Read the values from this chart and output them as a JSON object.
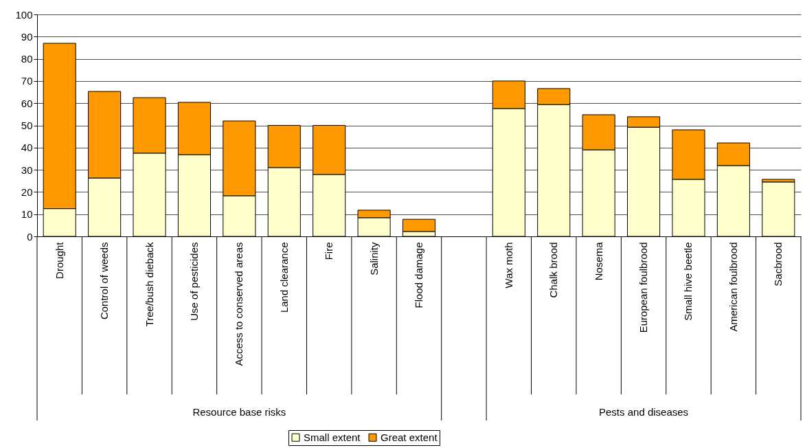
{
  "chart_data": {
    "type": "bar",
    "stacked": true,
    "categories": [
      "Drought",
      "Control of weeds",
      "Tree/bush dieback",
      "Use of pesticides",
      "Access to conserved areas",
      "Land clearance",
      "Fire",
      "Salinity",
      "Flood damage",
      null,
      "Wax moth",
      "Chalk brood",
      "Nosema",
      "European foulbrood",
      "Small hive beetle",
      "American foulbrood",
      "Sacbrood"
    ],
    "series": [
      {
        "name": "Small extent",
        "color": "#ffffcc",
        "values": [
          12.5,
          26.3,
          37.5,
          36.8,
          18.3,
          31,
          27.9,
          8.4,
          2.2,
          null,
          57.6,
          59.4,
          39,
          49.2,
          25.7,
          31.9,
          24.5
        ]
      },
      {
        "name": "Great extent",
        "color": "#ff9900",
        "values": [
          74.5,
          39,
          25,
          23.6,
          33.7,
          19,
          22.1,
          3.4,
          5.5,
          null,
          12.4,
          7.2,
          15.8,
          4.7,
          22.3,
          10.2,
          1.2
        ]
      }
    ],
    "ylim": [
      0,
      100
    ],
    "yticks": [
      0,
      10,
      20,
      30,
      40,
      50,
      60,
      70,
      80,
      90,
      100
    ],
    "grid": "y",
    "legend": "bottom",
    "annotations": [
      "Resource base risks",
      "Pests and diseases"
    ]
  }
}
